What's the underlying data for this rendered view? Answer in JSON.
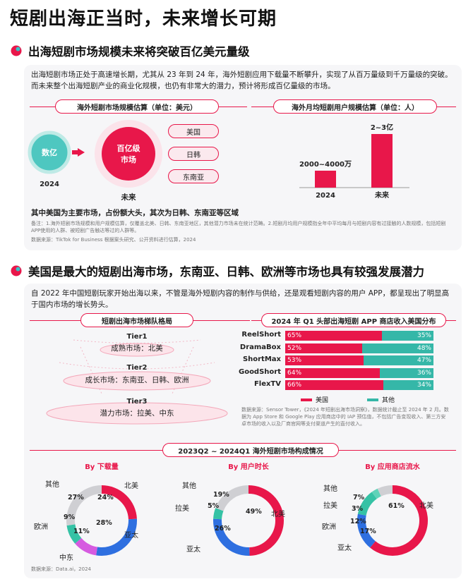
{
  "title": "短剧出海正当时，未来增长可期",
  "section1": {
    "title": "出海短剧市场规模未来将突破百亿美元量级",
    "intro": "出海短剧市场正处于高速增长期，尤其从 23 年到 24 年，海外短剧应用下载量不断攀升，实现了从百万量级到千万量级的突破。而未来整个出海短剧产业的商业化规模，也仍有非常大的潜力，预计将形成百亿量级的市场。",
    "market_pill": "海外短剧市场规模估算（单位：美元）",
    "users_pill": "海外月均短剧用户规模估算（单位：人）",
    "small_circle": "数亿",
    "small_year": "2024",
    "big_circle_line1": "百亿级",
    "big_circle_line2": "市场",
    "big_label": "未来",
    "regions": [
      "美国",
      "日韩",
      "东南亚"
    ],
    "summary": "其中美国为主要市场，占份额大头，其次为日韩、东南亚等区域",
    "note": "备注：1.海外短剧市场规模和用户规模估算，仅覆盖北美、日韩、东南亚地区，其他潜力市场未在统计范畴。2.短剧月均用户规模指全年中平均每月与短剧内容有过接触的人数规模，包括短剧 APP使用的人群、被短剧广告触达等过的人群等。",
    "source": "数据来源：TikTok for Business 根据案头研究、公开资料进行估算，2024"
  },
  "section2": {
    "title": "美国是最大的短剧出海市场，东南亚、日韩、欧洲等市场也具有较强发展潜力",
    "intro": "自 2022 年中国短剧玩家开始出海以来，不管是海外短剧内容的制作与供给，还是观看短剧内容的用户 APP，都呈现出了明显高于国内市场的增长势头。",
    "tier_pill": "短剧出海市场梯队格局",
    "tiers": [
      {
        "name": "Tier1",
        "desc": "成熟市场：北美"
      },
      {
        "name": "Tier2",
        "desc": "成长市场：东南亚、日韩、欧洲"
      },
      {
        "name": "Tier3",
        "desc": "潜力市场：拉美、中东"
      }
    ],
    "apps_pill": "2024 年 Q1 头部出海短剧 APP 商店收入美国分布",
    "legend_us": "美国",
    "legend_other": "其他",
    "apps_note": "数据来源：Sensor Tower，《2024 年短剧出海市场洞察》，数据统计截止至 2024 年 2 月。数据为 App Store 和 Google Play 应用商店中的 IAP 预估值，不包括广告变现收入、第三方安卓市场的收入以及厂商官网等支付渠道产生的直付收入。",
    "comp_pill": "2023Q2 ~ 2024Q1 海外短剧市场构成情况",
    "comp_source": "数据来源：Data.ai，2024"
  },
  "chart_data": [
    {
      "type": "bar",
      "title": "海外月均短剧用户规模估算（单位：人）",
      "categories": [
        "2024",
        "未来"
      ],
      "value_labels": [
        "2000~4000万",
        "2~3亿"
      ],
      "values": [
        30000000,
        250000000
      ]
    },
    {
      "type": "bar",
      "stacked": true,
      "horizontal": true,
      "title": "2024 年 Q1 头部出海短剧 APP 商店收入美国分布",
      "categories": [
        "ReelShort",
        "DramaBox",
        "ShortMax",
        "GoodShort",
        "FlexTV"
      ],
      "series": [
        {
          "name": "美国",
          "values": [
            65,
            52,
            53,
            64,
            66
          ],
          "color": "#e8174a"
        },
        {
          "name": "其他",
          "values": [
            35,
            48,
            47,
            36,
            34
          ],
          "color": "#35b7a8"
        }
      ]
    },
    {
      "type": "pie",
      "title": "By 下载量",
      "labels": [
        "北美",
        "亚太",
        "中东",
        "欧洲",
        "其他"
      ],
      "values": [
        24,
        28,
        11,
        9,
        27
      ],
      "colors": [
        "#e8174a",
        "#2e6fe0",
        "#d65be0",
        "#35c2a5",
        "#cfcfd3"
      ]
    },
    {
      "type": "pie",
      "title": "By 用户时长",
      "labels": [
        "北美",
        "亚太",
        "拉美",
        "其他"
      ],
      "values": [
        49,
        26,
        5,
        19
      ],
      "colors": [
        "#e8174a",
        "#2e6fe0",
        "#35c2a5",
        "#cfcfd3"
      ]
    },
    {
      "type": "pie",
      "title": "By 应用商店流水",
      "labels": [
        "北美",
        "亚太",
        "欧洲",
        "拉美",
        "其他"
      ],
      "values": [
        61,
        17,
        12,
        3,
        7
      ],
      "colors": [
        "#e8174a",
        "#2e6fe0",
        "#35c2a5",
        "#5fd3b9",
        "#cfcfd3"
      ]
    }
  ],
  "colors": {
    "accent": "#e8174a",
    "teal": "#35b7a8",
    "blue": "#2e6fe0",
    "card_bg": "#f6f6f8"
  }
}
